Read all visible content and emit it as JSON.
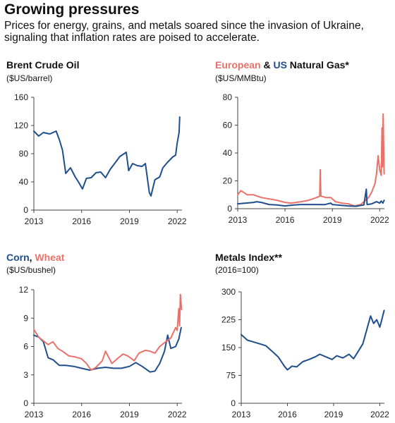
{
  "header": {
    "title": "Growing pressures",
    "subtitle": "Prices for energy, grains, and metals soared since the invasion of Ukraine, signaling that inflation rates are poised to accelerate."
  },
  "colors": {
    "navy": "#1f4e8c",
    "red": "#e9716a"
  },
  "chart_data": [
    {
      "type": "line",
      "title": "Brent Crude Oil",
      "ylabel": "($US/barrel)",
      "xlim": [
        2013,
        2022.3
      ],
      "ylim": [
        0,
        160
      ],
      "yticks": [
        0,
        40,
        80,
        120,
        160
      ],
      "xticks": [
        2013,
        2016,
        2019,
        2022
      ],
      "series": [
        {
          "color": "#1f4e8c",
          "x": [
            2013.0,
            2013.3,
            2013.6,
            2014.0,
            2014.4,
            2014.6,
            2014.8,
            2015.0,
            2015.3,
            2015.6,
            2015.8,
            2016.05,
            2016.3,
            2016.6,
            2016.9,
            2017.2,
            2017.5,
            2017.8,
            2018.1,
            2018.4,
            2018.8,
            2018.95,
            2019.2,
            2019.5,
            2019.8,
            2020.0,
            2020.25,
            2020.35,
            2020.6,
            2020.9,
            2021.1,
            2021.4,
            2021.7,
            2021.9,
            2022.0,
            2022.12,
            2022.16
          ],
          "y": [
            112,
            105,
            110,
            108,
            112,
            100,
            85,
            52,
            60,
            47,
            40,
            30,
            45,
            46,
            53,
            54,
            46,
            58,
            67,
            76,
            82,
            56,
            66,
            63,
            62,
            66,
            25,
            20,
            43,
            47,
            60,
            68,
            75,
            78,
            95,
            110,
            132
          ]
        }
      ]
    },
    {
      "type": "line",
      "title": "European & US Natural Gas*",
      "title_parts": [
        {
          "text": "European",
          "color": "#e9716a"
        },
        {
          "text": " & ",
          "color": "#111111"
        },
        {
          "text": "US",
          "color": "#1f4e8c"
        },
        {
          "text": " Natural Gas*",
          "color": "#111111"
        }
      ],
      "ylabel": "($US/MMBtu)",
      "xlim": [
        2013,
        2022.3
      ],
      "ylim": [
        0,
        80
      ],
      "yticks": [
        0,
        20,
        40,
        60,
        80
      ],
      "xticks": [
        2013,
        2016,
        2019,
        2022
      ],
      "series": [
        {
          "name": "European",
          "color": "#e9716a",
          "x": [
            2013.0,
            2013.2,
            2013.6,
            2014.0,
            2014.5,
            2015.0,
            2015.5,
            2016.0,
            2016.4,
            2017.0,
            2017.5,
            2018.0,
            2018.2,
            2018.23,
            2018.27,
            2018.6,
            2018.9,
            2019.2,
            2019.6,
            2020.0,
            2020.4,
            2020.8,
            2021.0,
            2021.3,
            2021.5,
            2021.7,
            2021.8,
            2021.9,
            2022.0,
            2022.1,
            2022.15,
            2022.18,
            2022.22,
            2022.28
          ],
          "y": [
            10,
            13,
            10,
            10,
            8,
            7,
            6,
            4.5,
            4,
            5,
            6,
            8,
            9,
            28,
            9,
            8,
            8,
            5,
            4,
            3.5,
            2,
            3,
            5,
            8,
            12,
            18,
            25,
            38,
            28,
            24,
            58,
            30,
            68,
            25
          ]
        },
        {
          "name": "US",
          "color": "#1f4e8c",
          "x": [
            2013.0,
            2013.5,
            2014.0,
            2014.2,
            2014.5,
            2015.0,
            2015.5,
            2016.0,
            2016.5,
            2017.0,
            2017.5,
            2018.0,
            2018.5,
            2018.9,
            2019.0,
            2019.5,
            2020.0,
            2020.5,
            2021.0,
            2021.15,
            2021.2,
            2021.5,
            2021.8,
            2022.0,
            2022.1,
            2022.2,
            2022.28
          ],
          "y": [
            3.5,
            4,
            4.5,
            5,
            4.5,
            3,
            2.7,
            2,
            2.6,
            3,
            3,
            3,
            2.9,
            4,
            3,
            2.5,
            2,
            1.7,
            2.7,
            14,
            3,
            3.5,
            5,
            4,
            5.5,
            4,
            6
          ]
        }
      ]
    },
    {
      "type": "line",
      "title": "Corn, Wheat",
      "title_parts": [
        {
          "text": "Corn",
          "color": "#1f4e8c"
        },
        {
          "text": ", ",
          "color": "#111111"
        },
        {
          "text": "Wheat",
          "color": "#e9716a"
        }
      ],
      "ylabel": "($US/bushel)",
      "xlim": [
        2013,
        2022.3
      ],
      "ylim": [
        0,
        12
      ],
      "yticks": [
        0,
        3,
        6,
        9,
        12
      ],
      "xticks": [
        2013,
        2016,
        2019,
        2022
      ],
      "series": [
        {
          "name": "Corn",
          "color": "#1f4e8c",
          "x": [
            2013.0,
            2013.3,
            2013.6,
            2013.9,
            2014.2,
            2014.6,
            2015.0,
            2015.5,
            2016.0,
            2016.5,
            2017.0,
            2017.5,
            2018.0,
            2018.5,
            2019.0,
            2019.4,
            2019.8,
            2020.3,
            2020.6,
            2020.9,
            2021.2,
            2021.4,
            2021.6,
            2021.9,
            2022.1,
            2022.25
          ],
          "y": [
            7.2,
            7.0,
            6.5,
            4.8,
            4.6,
            4.0,
            4.0,
            3.9,
            3.7,
            3.5,
            3.7,
            3.8,
            3.7,
            3.7,
            3.9,
            4.3,
            3.9,
            3.3,
            3.4,
            4.2,
            5.5,
            7.2,
            5.8,
            6.0,
            6.8,
            8.0
          ]
        },
        {
          "name": "Wheat",
          "color": "#e9716a",
          "x": [
            2013.0,
            2013.3,
            2013.6,
            2013.9,
            2014.2,
            2014.5,
            2014.8,
            2015.2,
            2015.6,
            2016.0,
            2016.3,
            2016.6,
            2016.9,
            2017.3,
            2017.5,
            2017.9,
            2018.3,
            2018.6,
            2018.9,
            2019.3,
            2019.6,
            2020.0,
            2020.3,
            2020.6,
            2020.9,
            2021.2,
            2021.6,
            2021.9,
            2022.0,
            2022.1,
            2022.15,
            2022.2,
            2022.28
          ],
          "y": [
            7.8,
            7.0,
            6.6,
            6.2,
            6.5,
            5.8,
            5.5,
            5.0,
            4.9,
            4.7,
            4.2,
            3.5,
            3.8,
            4.5,
            5.5,
            4.2,
            4.8,
            5.2,
            5.0,
            4.5,
            5.3,
            5.6,
            5.5,
            5.3,
            6.0,
            6.4,
            6.9,
            8.0,
            7.7,
            10.0,
            8.2,
            11.5,
            9.9
          ]
        }
      ]
    },
    {
      "type": "line",
      "title": "Metals Index**",
      "ylabel": "(2016=100)",
      "xlim": [
        2013,
        2022.3
      ],
      "ylim": [
        0,
        300
      ],
      "yticks": [
        0,
        75,
        150,
        225,
        300
      ],
      "xticks": [
        2013,
        2016,
        2019,
        2022
      ],
      "series": [
        {
          "color": "#1f4e8c",
          "x": [
            2013.0,
            2013.4,
            2013.8,
            2014.2,
            2014.6,
            2015.0,
            2015.4,
            2015.8,
            2016.0,
            2016.3,
            2016.6,
            2017.0,
            2017.4,
            2017.8,
            2018.1,
            2018.5,
            2018.9,
            2019.2,
            2019.6,
            2020.0,
            2020.3,
            2020.6,
            2020.9,
            2021.2,
            2021.4,
            2021.6,
            2021.8,
            2022.0,
            2022.15,
            2022.28
          ],
          "y": [
            185,
            170,
            165,
            160,
            155,
            140,
            125,
            100,
            90,
            100,
            98,
            112,
            118,
            125,
            132,
            125,
            118,
            128,
            122,
            132,
            120,
            140,
            160,
            205,
            235,
            215,
            225,
            205,
            228,
            250
          ]
        }
      ]
    }
  ]
}
